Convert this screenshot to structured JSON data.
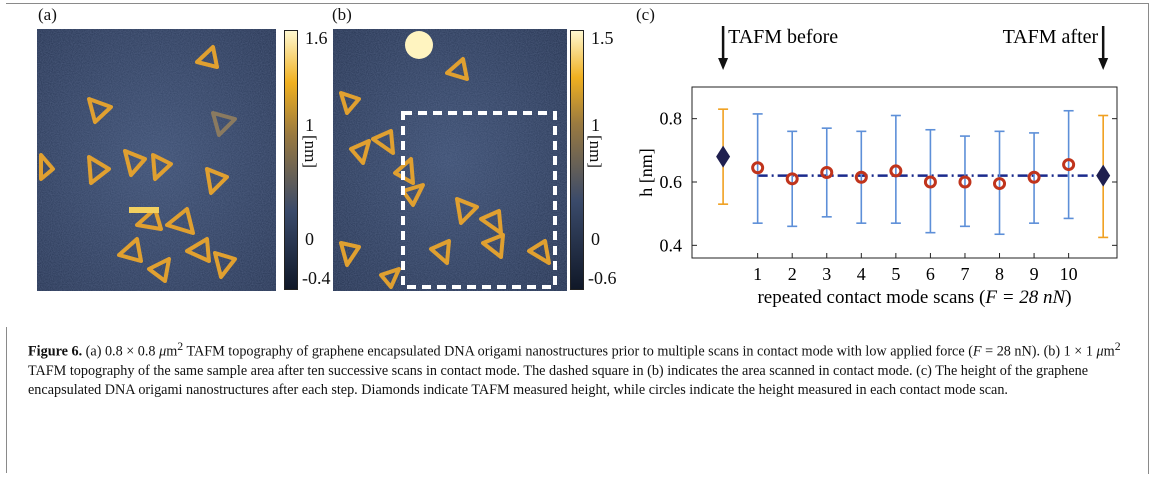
{
  "panels": {
    "a": {
      "label": "(a)",
      "colorbar": {
        "max": "1.6",
        "mid": "1",
        "zero": "0",
        "min": "-0.4",
        "unit": "[nm]"
      }
    },
    "b": {
      "label": "(b)",
      "colorbar": {
        "max": "1.5",
        "mid": "1",
        "zero": "0",
        "min": "-0.6",
        "unit": "[nm]"
      }
    },
    "c": {
      "label": "(c)"
    }
  },
  "chart_data": {
    "type": "scatter",
    "xlabel_prefix": "repeated contact mode scans (",
    "xlabel_force": "F = 28 nN",
    "xlabel_suffix": ")",
    "ylabel": "h [nm]",
    "xlim": [
      -0.9,
      11.4
    ],
    "ylim": [
      0.36,
      0.9
    ],
    "xticks": [
      1,
      2,
      3,
      4,
      5,
      6,
      7,
      8,
      9,
      10
    ],
    "yticks": [
      0.4,
      0.6,
      0.8
    ],
    "annotations": {
      "before": "TAFM before",
      "after": "TAFM after"
    },
    "tafm": [
      {
        "x": 0,
        "y": 0.68,
        "err_low": 0.53,
        "err_high": 0.83
      },
      {
        "x": 11,
        "y": 0.62,
        "err_low": 0.425,
        "err_high": 0.81
      }
    ],
    "contact": [
      {
        "x": 1,
        "y": 0.645,
        "err_low": 0.47,
        "err_high": 0.815
      },
      {
        "x": 2,
        "y": 0.61,
        "err_low": 0.46,
        "err_high": 0.76
      },
      {
        "x": 3,
        "y": 0.63,
        "err_low": 0.49,
        "err_high": 0.77
      },
      {
        "x": 4,
        "y": 0.615,
        "err_low": 0.47,
        "err_high": 0.76
      },
      {
        "x": 5,
        "y": 0.635,
        "err_low": 0.47,
        "err_high": 0.81
      },
      {
        "x": 6,
        "y": 0.6,
        "err_low": 0.44,
        "err_high": 0.765
      },
      {
        "x": 7,
        "y": 0.6,
        "err_low": 0.46,
        "err_high": 0.745
      },
      {
        "x": 8,
        "y": 0.595,
        "err_low": 0.435,
        "err_high": 0.76
      },
      {
        "x": 9,
        "y": 0.615,
        "err_low": 0.47,
        "err_high": 0.755
      },
      {
        "x": 10,
        "y": 0.655,
        "err_low": 0.485,
        "err_high": 0.825
      }
    ],
    "mean_line": {
      "y": 0.62,
      "x_from": 1,
      "x_to": 11
    },
    "colors": {
      "tafm_marker": "#1f1f4f",
      "tafm_error": "#f0a020",
      "contact_marker": "#c0341c",
      "contact_error": "#5d8fd8",
      "mean_line": "#1a2a8c"
    }
  },
  "caption": {
    "label": "Figure 6.",
    "p1": " (a) 0.8 × 0.8 ",
    "mu": "μ",
    "m": "m",
    "sup1": "2",
    "p2": " TAFM topography of graphene encapsulated DNA origami nanostructures prior to multiple scans in contact mode with low applied force (",
    "F1": "F",
    "p3": " = 28 nN). (b) 1 × 1 ",
    "mu2": "μ",
    "m2": "m",
    "sup2": "2",
    "p4": " TAFM topography of the same sample area after ten successive scans in contact mode. The dashed square in (b) indicates the area scanned in contact mode. (c) The height of the graphene encapsulated DNA origami nanostructures after each step. Diamonds indicate TAFM measured height, while circles indicate the height measured in each contact mode scan."
  }
}
